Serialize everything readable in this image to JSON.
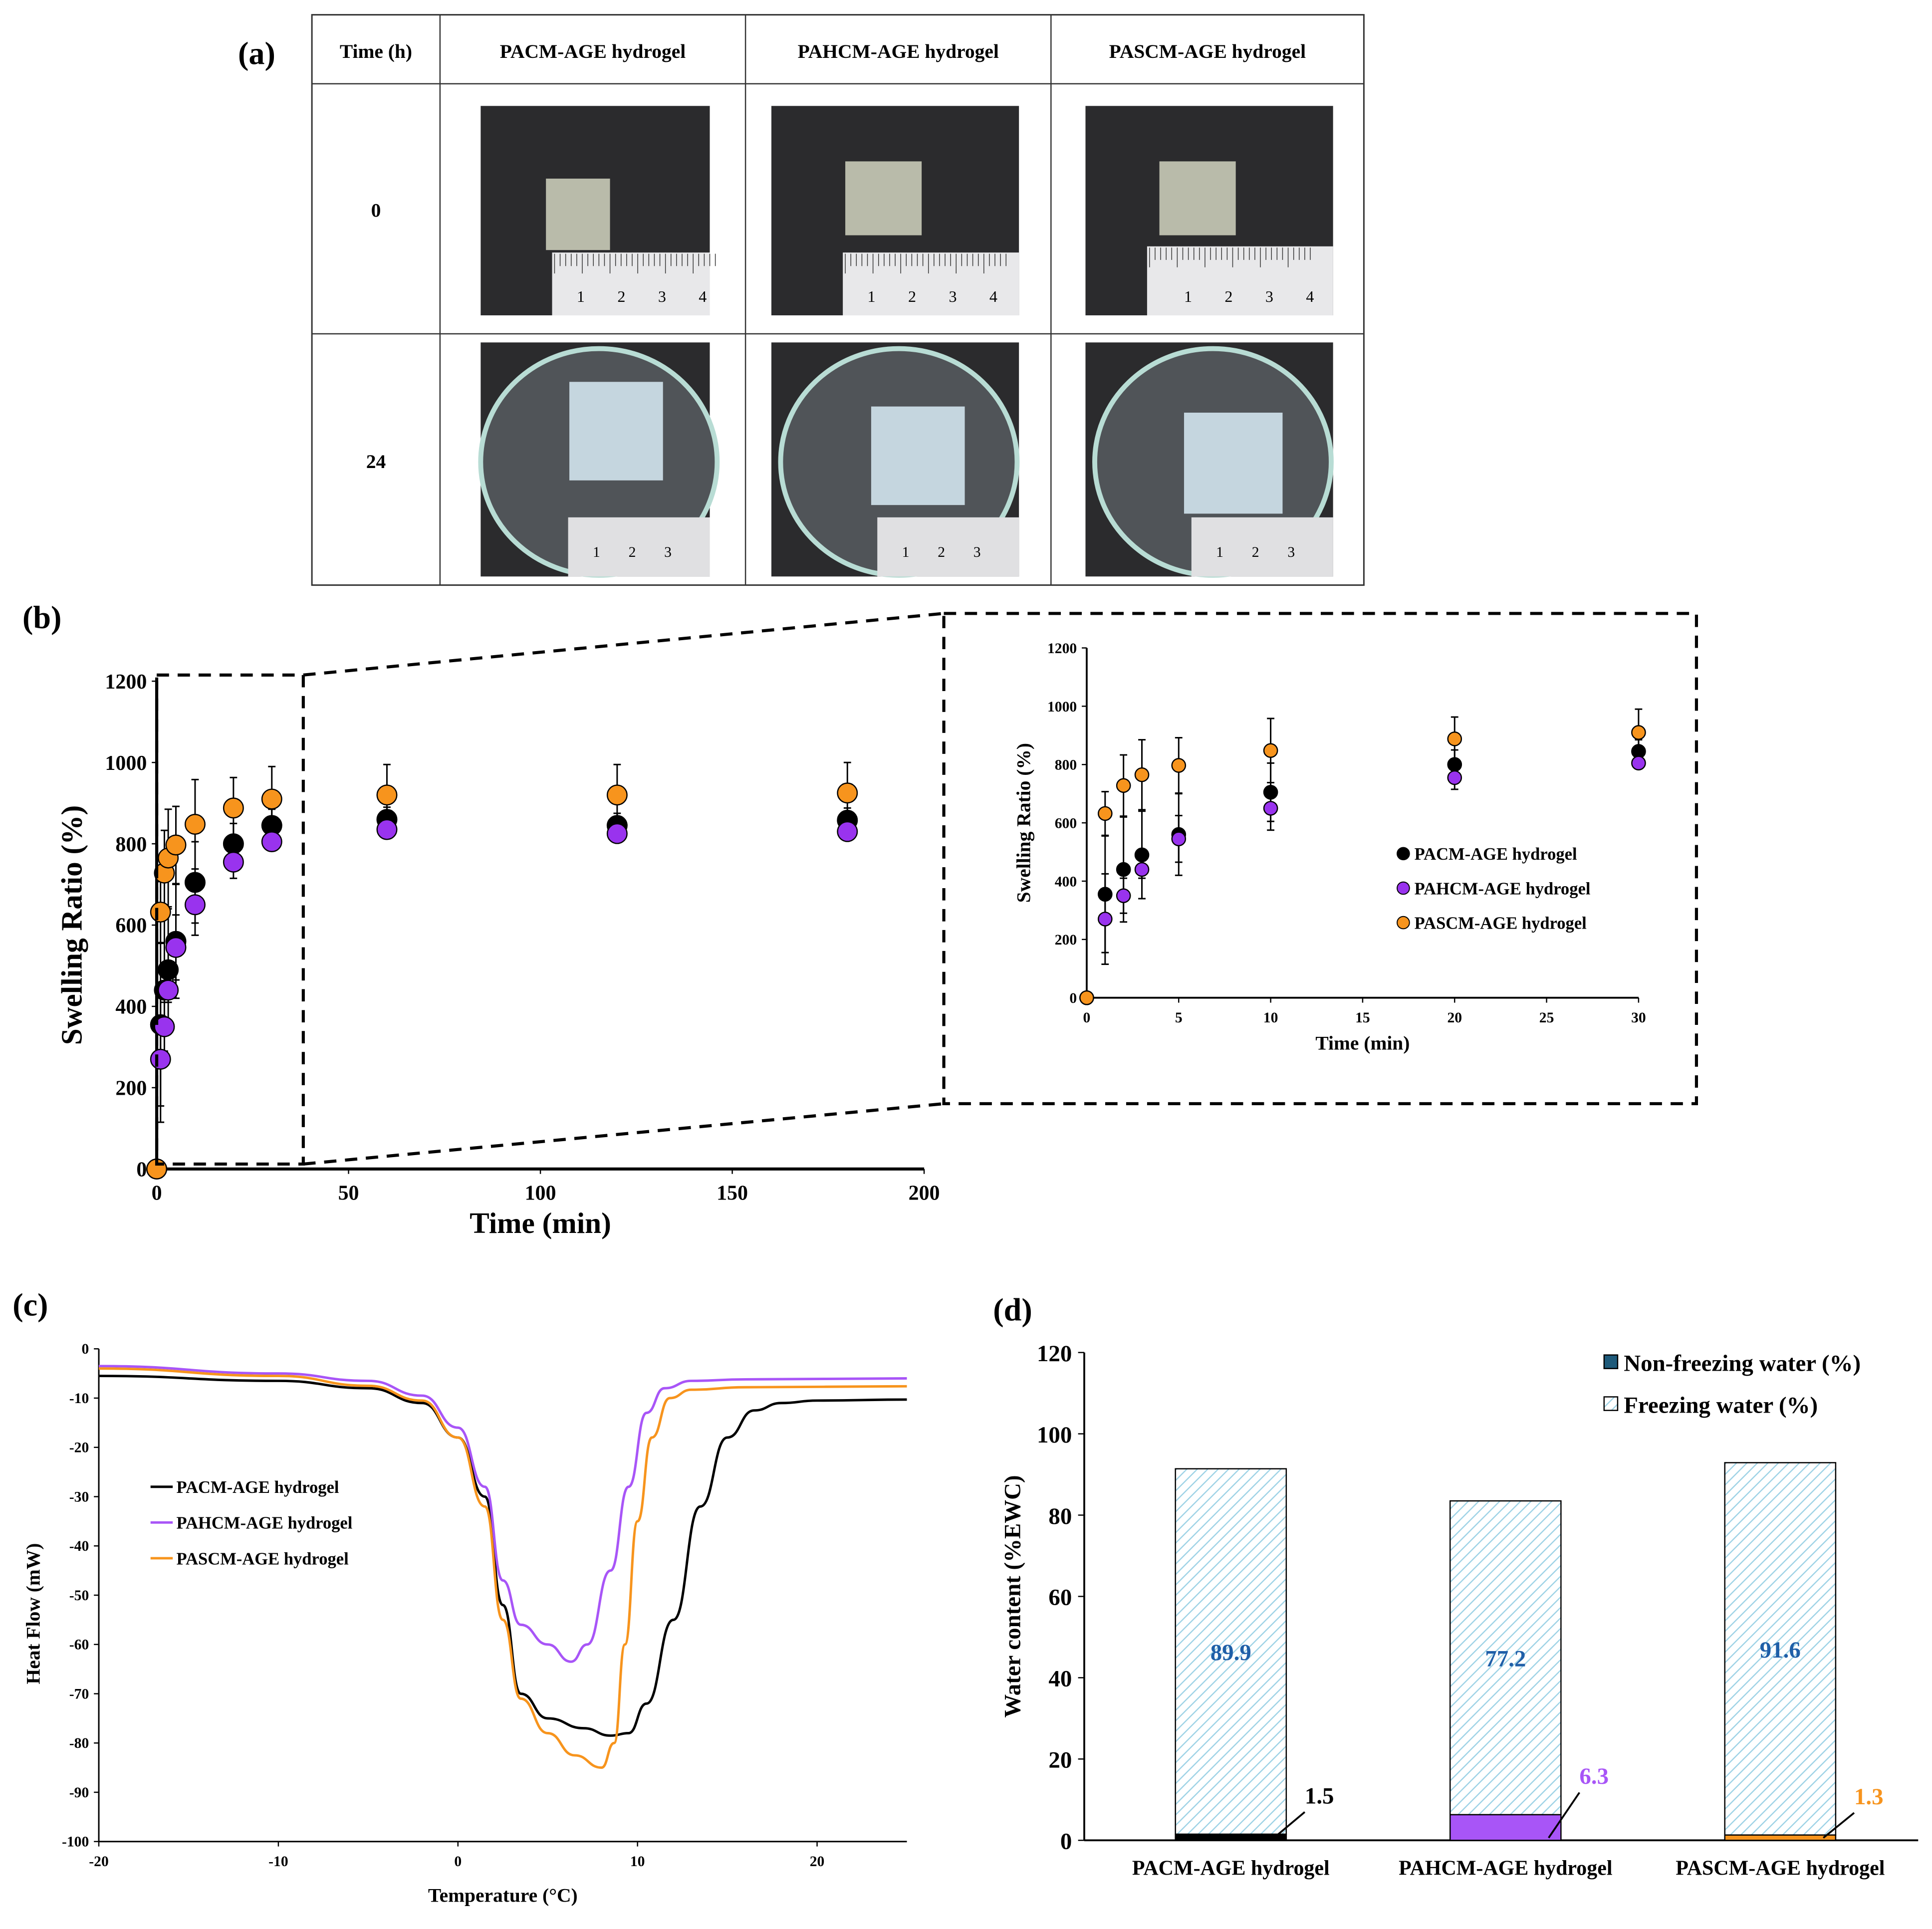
{
  "panel_labels": {
    "a": "(a)",
    "b": "(b)",
    "c": "(c)",
    "d": "(d)"
  },
  "table": {
    "headers": [
      "Time (h)",
      "PACM-AGE hydrogel",
      "PAHCM-AGE hydrogel",
      "PASCM-AGE hydrogel"
    ],
    "rows": [
      "0",
      "24"
    ],
    "ruler_numbers_0h": [
      "1",
      "2",
      "3",
      "4"
    ],
    "ruler_numbers_24h": [
      "1",
      "2",
      "3"
    ]
  },
  "chart_data": [
    {
      "id": "b-main",
      "type": "scatter",
      "xlabel": "Time (min)",
      "ylabel": "Swelling Ratio (%)",
      "xlim": [
        0,
        200
      ],
      "ylim": [
        0,
        1200
      ],
      "xticks": [
        "0",
        "50",
        "100",
        "150",
        "200"
      ],
      "yticks": [
        "0",
        "200",
        "400",
        "600",
        "800",
        "1000",
        "1200"
      ],
      "x": [
        0,
        1,
        2,
        3,
        5,
        10,
        20,
        30,
        60,
        120,
        180
      ],
      "series": [
        {
          "name": "PACM-AGE hydrogel",
          "color": "#000000",
          "values": [
            0,
            355,
            440,
            490,
            560,
            705,
            800,
            845,
            860,
            845,
            858
          ],
          "errors": [
            0,
            200,
            180,
            150,
            140,
            100,
            50,
            40,
            30,
            30,
            30
          ]
        },
        {
          "name": "PAHCM-AGE hydrogel",
          "color": "#9933ee",
          "values": [
            0,
            270,
            350,
            440,
            545,
            650,
            755,
            805,
            835,
            825,
            830
          ],
          "errors": [
            0,
            155,
            60,
            30,
            80,
            75,
            40,
            20,
            20,
            20,
            20
          ]
        },
        {
          "name": "PASCM-AGE hydrogel",
          "color": "#f7941d",
          "values": [
            0,
            632,
            728,
            765,
            797,
            848,
            888,
            910,
            920,
            920,
            925
          ],
          "errors": [
            0,
            75,
            105,
            120,
            95,
            110,
            75,
            80,
            75,
            75,
            75
          ]
        }
      ]
    },
    {
      "id": "b-inset",
      "type": "scatter",
      "xlabel": "Time (min)",
      "ylabel": "Swelling Ratio (%)",
      "xlim": [
        0,
        30
      ],
      "ylim": [
        0,
        1200
      ],
      "xticks": [
        "0",
        "5",
        "10",
        "15",
        "20",
        "25",
        "30"
      ],
      "yticks": [
        "0",
        "200",
        "400",
        "600",
        "800",
        "1000",
        "1200"
      ],
      "legend": "center-right"
    },
    {
      "id": "c",
      "type": "line",
      "xlabel": "Temperature (°C)",
      "ylabel": "Heat Flow (mW)",
      "xlim": [
        -20,
        25
      ],
      "ylim": [
        -100,
        0
      ],
      "xticks": [
        "-20",
        "-10",
        "0",
        "10",
        "20"
      ],
      "yticks": [
        "0",
        "-10",
        "-20",
        "-30",
        "-40",
        "-50",
        "-60",
        "-70",
        "-80",
        "-90",
        "-100"
      ],
      "legend": "left",
      "series": [
        {
          "name": "PACM-AGE hydrogel",
          "color": "#000000",
          "points": [
            [
              -20,
              -5.5
            ],
            [
              -10,
              -6.5
            ],
            [
              -5,
              -8
            ],
            [
              -2,
              -11
            ],
            [
              0,
              -18
            ],
            [
              1.5,
              -30
            ],
            [
              2.5,
              -52
            ],
            [
              3.5,
              -70
            ],
            [
              5,
              -75
            ],
            [
              7,
              -77
            ],
            [
              8.5,
              -78.5
            ],
            [
              9.5,
              -78
            ],
            [
              10.5,
              -72
            ],
            [
              12,
              -55
            ],
            [
              13.5,
              -32
            ],
            [
              15,
              -18
            ],
            [
              16.5,
              -12.5
            ],
            [
              18,
              -11
            ],
            [
              20,
              -10.5
            ],
            [
              25,
              -10.3
            ]
          ]
        },
        {
          "name": "PAHCM-AGE hydrogel",
          "color": "#a855f7",
          "points": [
            [
              -20,
              -3.5
            ],
            [
              -10,
              -5
            ],
            [
              -5,
              -6.5
            ],
            [
              -2,
              -9.5
            ],
            [
              0,
              -16
            ],
            [
              1.5,
              -28
            ],
            [
              2.5,
              -47
            ],
            [
              3.5,
              -56
            ],
            [
              5,
              -60
            ],
            [
              6.3,
              -63.5
            ],
            [
              7.2,
              -60
            ],
            [
              8.5,
              -45
            ],
            [
              9.5,
              -28
            ],
            [
              10.5,
              -13
            ],
            [
              11.5,
              -8
            ],
            [
              13,
              -6.5
            ],
            [
              16,
              -6.2
            ],
            [
              25,
              -6
            ]
          ]
        },
        {
          "name": "PASCM-AGE hydrogel",
          "color": "#f7941d",
          "points": [
            [
              -20,
              -4
            ],
            [
              -10,
              -5.5
            ],
            [
              -5,
              -7.5
            ],
            [
              -2,
              -10.5
            ],
            [
              0,
              -18
            ],
            [
              1.5,
              -32
            ],
            [
              2.5,
              -55
            ],
            [
              3.5,
              -71
            ],
            [
              5,
              -78
            ],
            [
              6.5,
              -82.5
            ],
            [
              8,
              -85
            ],
            [
              8.7,
              -80
            ],
            [
              9.3,
              -60
            ],
            [
              10,
              -35
            ],
            [
              10.8,
              -18
            ],
            [
              11.8,
              -10
            ],
            [
              13,
              -8.3
            ],
            [
              16,
              -7.8
            ],
            [
              25,
              -7.6
            ]
          ]
        }
      ]
    },
    {
      "id": "d",
      "type": "bar",
      "stacked": true,
      "ylabel": "Water content (%EWC)",
      "ylim": [
        0,
        120
      ],
      "yticks": [
        "0",
        "20",
        "40",
        "60",
        "80",
        "100",
        "120"
      ],
      "categories": [
        "PACM-AGE hydrogel",
        "PAHCM-AGE hydrogel",
        "PASCM-AGE hydrogel"
      ],
      "legend": "top-right",
      "series": [
        {
          "name": "Non-freezing water (%)",
          "colors": [
            "#000000",
            "#a855f7",
            "#f7941d"
          ],
          "values": [
            1.5,
            6.3,
            1.3
          ],
          "labels": [
            "1.5",
            "6.3",
            "1.3"
          ]
        },
        {
          "name": "Freezing water (%)",
          "color": "#9fd3e6",
          "values": [
            89.9,
            77.2,
            91.6
          ],
          "labels": [
            "89.9",
            "77.2",
            "91.6"
          ],
          "label_color": "#1f5fa8"
        }
      ]
    }
  ]
}
